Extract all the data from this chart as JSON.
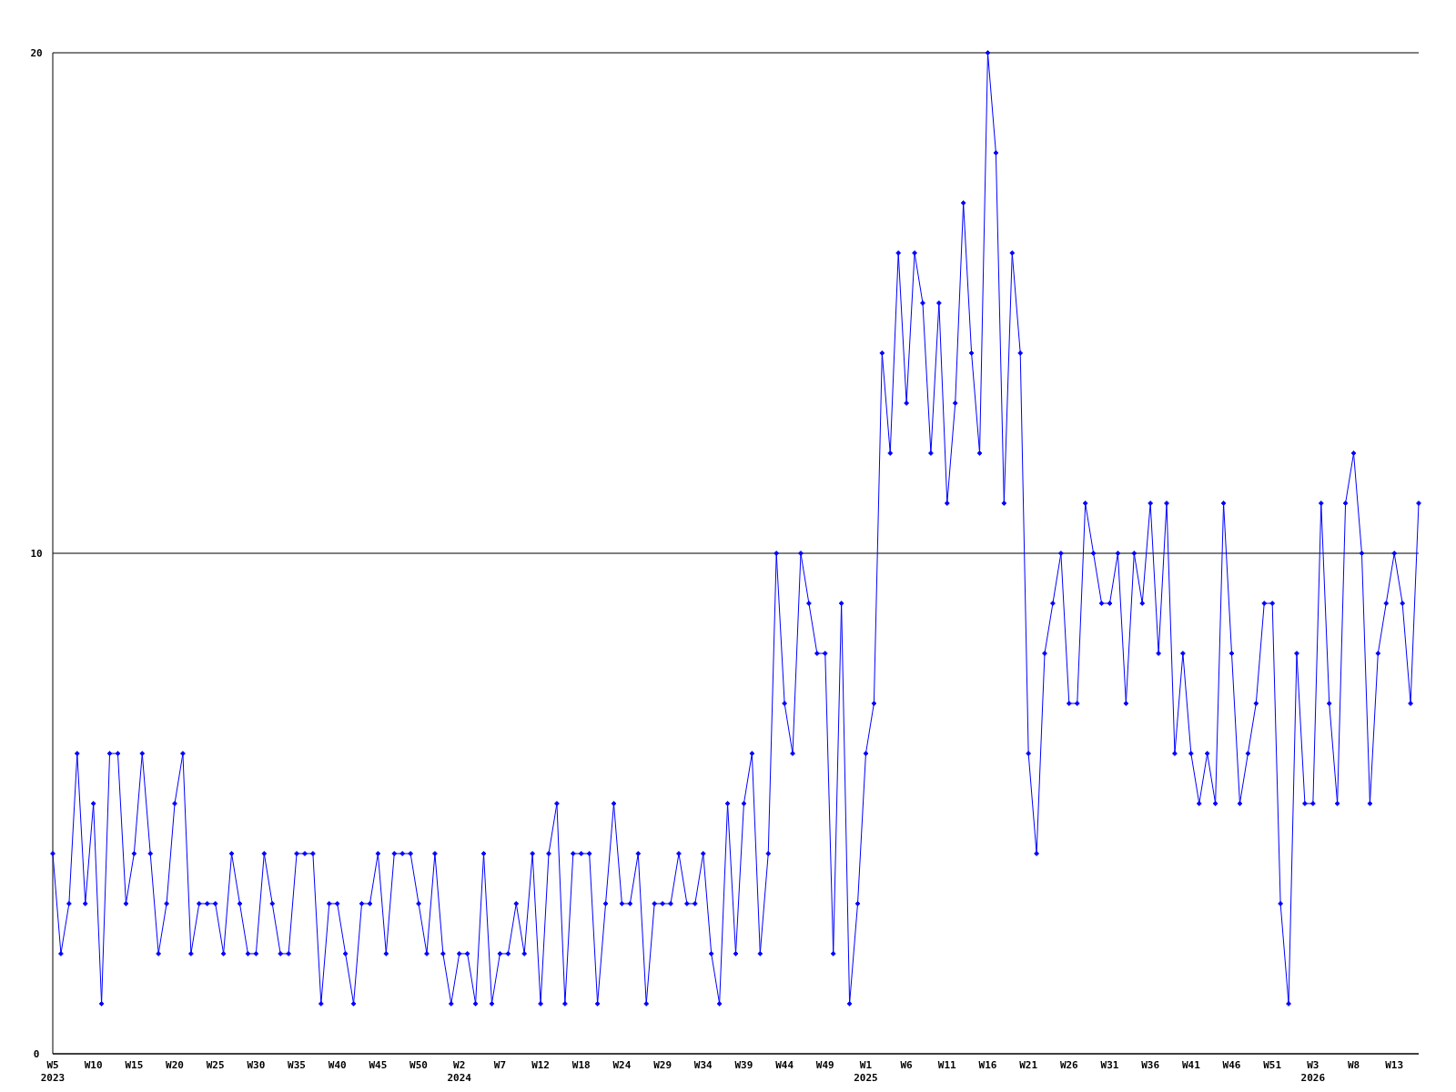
{
  "chart_data": {
    "type": "line",
    "categories": [
      "W5\n2023",
      null,
      null,
      null,
      null,
      "W10",
      null,
      null,
      null,
      null,
      "W15",
      null,
      null,
      null,
      null,
      "W20",
      null,
      null,
      null,
      null,
      "W25",
      null,
      null,
      null,
      null,
      "W30",
      null,
      null,
      null,
      null,
      "W35",
      null,
      null,
      null,
      null,
      "W40",
      null,
      null,
      null,
      null,
      "W45",
      null,
      null,
      null,
      null,
      "W50",
      null,
      null,
      null,
      null,
      "W2\n2024",
      null,
      null,
      null,
      null,
      "W7",
      null,
      null,
      null,
      null,
      "W12",
      null,
      null,
      null,
      null,
      "W18",
      null,
      null,
      null,
      null,
      "W24",
      null,
      null,
      null,
      null,
      "W29",
      null,
      null,
      null,
      null,
      "W34",
      null,
      null,
      null,
      null,
      "W39",
      null,
      null,
      null,
      null,
      "W44",
      null,
      null,
      null,
      null,
      "W49",
      null,
      null,
      null,
      null,
      "W1\n2025",
      null,
      null,
      null,
      null,
      "W6",
      null,
      null,
      null,
      null,
      "W11",
      null,
      null,
      null,
      null,
      "W16",
      null,
      null,
      null,
      null,
      "W21",
      null,
      null,
      null,
      null,
      "W26",
      null,
      null,
      null,
      null,
      "W31",
      null,
      null,
      null,
      null,
      "W36",
      null,
      null,
      null,
      null,
      "W41",
      null,
      null,
      null,
      null,
      "W46",
      null,
      null,
      null,
      null,
      "W51",
      null,
      null,
      null,
      null,
      "W3\n2026",
      null,
      null,
      null,
      null,
      "W8",
      null,
      null,
      null,
      null,
      "W13",
      null,
      null,
      null
    ],
    "series": [
      {
        "color": "#0000ff",
        "values": [
          4,
          2,
          3,
          6,
          3,
          5,
          1,
          6,
          6,
          3,
          4,
          6,
          4,
          2,
          3,
          5,
          6,
          2,
          3,
          3,
          3,
          2,
          4,
          3,
          2,
          2,
          4,
          3,
          2,
          2,
          4,
          4,
          4,
          1,
          3,
          3,
          2,
          1,
          3,
          3,
          4,
          2,
          4,
          4,
          4,
          3,
          2,
          4,
          2,
          1,
          2,
          2,
          1,
          4,
          1,
          2,
          2,
          3,
          2,
          4,
          1,
          4,
          5,
          1,
          4,
          4,
          4,
          1,
          3,
          5,
          3,
          3,
          4,
          1,
          3,
          3,
          3,
          4,
          3,
          3,
          4,
          2,
          1,
          5,
          2,
          5,
          6,
          2,
          4,
          10,
          7,
          6,
          10,
          9,
          8,
          8,
          2,
          9,
          1,
          3,
          6,
          7,
          14,
          12,
          16,
          13,
          16,
          15,
          12,
          15,
          11,
          13,
          17,
          14,
          12,
          20,
          18,
          11,
          16,
          14,
          6,
          4,
          8,
          9,
          10,
          7,
          7,
          11,
          10,
          9,
          9,
          10,
          7,
          10,
          9,
          11,
          8,
          11,
          6,
          8,
          6,
          5,
          6,
          5,
          11,
          8,
          5,
          6,
          7,
          9,
          9,
          3,
          1,
          8,
          5,
          5,
          11,
          7,
          5,
          11,
          12,
          10,
          5,
          8,
          9,
          10,
          9,
          7,
          11
        ]
      }
    ],
    "ylim": [
      0,
      20
    ],
    "yticks": [
      0,
      10,
      20
    ],
    "grid": "y",
    "marker": "diamond",
    "line_style": "solid"
  }
}
